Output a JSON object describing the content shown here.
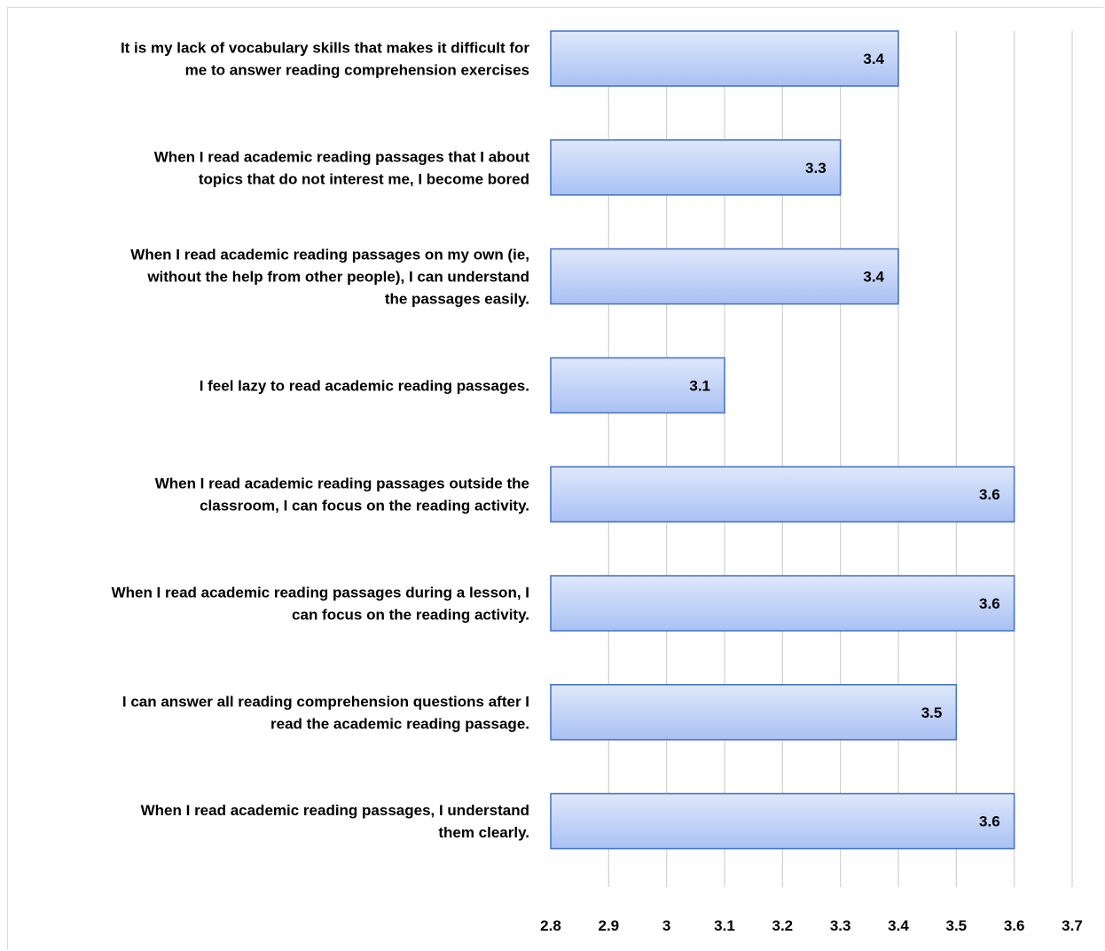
{
  "chart_data": {
    "type": "bar",
    "orientation": "horizontal",
    "title": "",
    "xlabel": "",
    "ylabel": "",
    "xlim": [
      2.8,
      3.7
    ],
    "ticks": [
      "2.8",
      "2.9",
      "3",
      "3.1",
      "3.2",
      "3.3",
      "3.4",
      "3.5",
      "3.6",
      "3.7"
    ],
    "tick_values": [
      2.8,
      2.9,
      3.0,
      3.1,
      3.2,
      3.3,
      3.4,
      3.5,
      3.6,
      3.7
    ],
    "grid": true,
    "legend": "none",
    "colors": {
      "bar_top": "#dfe8fb",
      "bar_bottom": "#a9c1f3",
      "bar_border": "#4a76c9",
      "grid": "#d0d0d0"
    },
    "categories": [
      [
        "It is my lack of vocabulary skills that makes it difficult for",
        "me to answer reading comprehension exercises"
      ],
      [
        "When I read academic reading passages that I about",
        "topics that do not interest me, I become bored"
      ],
      [
        "When I read academic reading passages on my own (ie,",
        "without the help from other people), I can understand",
        "the passages easily."
      ],
      [
        "I feel lazy to read academic reading passages."
      ],
      [
        "When I read academic reading passages outside the",
        "classroom, I can focus on the reading activity."
      ],
      [
        "When I read academic reading passages during a lesson, I",
        "can focus on the reading activity."
      ],
      [
        "I can answer all reading comprehension questions after I",
        "read the academic reading passage."
      ],
      [
        "When I read academic reading passages, I understand",
        "them clearly."
      ]
    ],
    "values": [
      3.4,
      3.3,
      3.4,
      3.1,
      3.6,
      3.6,
      3.5,
      3.6
    ],
    "data_labels": [
      "3.4",
      "3.3",
      "3.4",
      "3.1",
      "3.6",
      "3.6",
      "3.5",
      "3.6"
    ]
  }
}
